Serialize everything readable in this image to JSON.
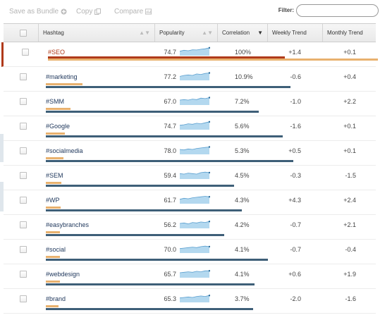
{
  "toolbar": {
    "save_bundle": "Save as Bundle",
    "copy": "Copy",
    "compare": "Compare",
    "filter_label": "Filter:",
    "filter_value": ""
  },
  "columns": {
    "hashtag": "Hashtag",
    "popularity": "Popularity",
    "correlation": "Correlation",
    "weekly": "Weekly Trend",
    "monthly": "Monthly Trend"
  },
  "rows": [
    {
      "tag": "#SEO",
      "popularity": "74.7",
      "correlation": "100%",
      "weekly": "+1.4",
      "monthly": "+0.1",
      "popularity_level": 0.747,
      "correlation_level": 1.0,
      "selected": true
    },
    {
      "tag": "#marketing",
      "popularity": "77.2",
      "correlation": "10.9%",
      "weekly": "-0.6",
      "monthly": "+0.4",
      "popularity_level": 0.772,
      "correlation_level": 0.109,
      "selected": false
    },
    {
      "tag": "#SMM",
      "popularity": "67.0",
      "correlation": "7.2%",
      "weekly": "-1.0",
      "monthly": "+2.2",
      "popularity_level": 0.67,
      "correlation_level": 0.072,
      "selected": false
    },
    {
      "tag": "#Google",
      "popularity": "74.7",
      "correlation": "5.6%",
      "weekly": "-1.6",
      "monthly": "+0.1",
      "popularity_level": 0.747,
      "correlation_level": 0.056,
      "selected": false
    },
    {
      "tag": "#socialmedia",
      "popularity": "78.0",
      "correlation": "5.3%",
      "weekly": "+0.5",
      "monthly": "+0.1",
      "popularity_level": 0.78,
      "correlation_level": 0.053,
      "selected": false
    },
    {
      "tag": "#SEM",
      "popularity": "59.4",
      "correlation": "4.5%",
      "weekly": "-0.3",
      "monthly": "-1.5",
      "popularity_level": 0.594,
      "correlation_level": 0.045,
      "selected": false
    },
    {
      "tag": "#WP",
      "popularity": "61.7",
      "correlation": "4.3%",
      "weekly": "+4.3",
      "monthly": "+2.4",
      "popularity_level": 0.617,
      "correlation_level": 0.043,
      "selected": false
    },
    {
      "tag": "#easybranches",
      "popularity": "56.2",
      "correlation": "4.2%",
      "weekly": "-0.7",
      "monthly": "+2.1",
      "popularity_level": 0.562,
      "correlation_level": 0.042,
      "selected": false
    },
    {
      "tag": "#social",
      "popularity": "70.0",
      "correlation": "4.1%",
      "weekly": "-0.7",
      "monthly": "-0.4",
      "popularity_level": 0.7,
      "correlation_level": 0.041,
      "selected": false
    },
    {
      "tag": "#webdesign",
      "popularity": "65.7",
      "correlation": "4.1%",
      "weekly": "+0.6",
      "monthly": "+1.9",
      "popularity_level": 0.657,
      "correlation_level": 0.041,
      "selected": false
    },
    {
      "tag": "#brand",
      "popularity": "65.3",
      "correlation": "3.7%",
      "weekly": "-2.0",
      "monthly": "-1.6",
      "popularity_level": 0.653,
      "correlation_level": 0.037,
      "selected": false
    }
  ],
  "colors": {
    "selected_accent": "#b03a1a",
    "popularity_bar": "#3e5f78",
    "correlation_bar": "#e8b16e",
    "sparkline_fill": "#b3d8ef",
    "sparkline_line": "#5a9fcf"
  },
  "icons": {
    "save_bundle": "plus-circle-icon",
    "copy": "copy-icon",
    "compare": "compare-chart-icon",
    "sort_desc": "sort-desc-icon"
  }
}
